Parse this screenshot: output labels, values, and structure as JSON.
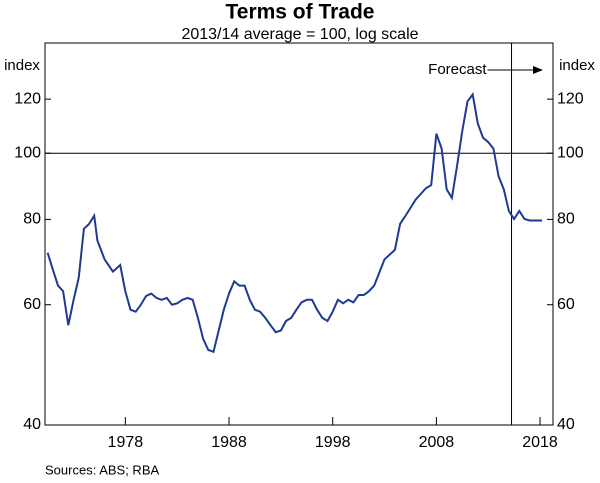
{
  "chart_data": {
    "type": "line",
    "title": "Terms of Trade",
    "subtitle": "2013/14 average = 100, log scale",
    "y_label": "index",
    "y2_label": "index",
    "source": "Sources:  ABS; RBA",
    "annotation": "Forecast",
    "forecast_start": 2015.25,
    "hline": 100,
    "log_scale": true,
    "xlim": [
      1970.25,
      2019.25
    ],
    "xticks": [
      1978,
      1988,
      1998,
      2008,
      2018
    ],
    "ylim": [
      40,
      145
    ],
    "yticks": [
      40,
      60,
      80,
      100,
      120
    ],
    "series": [
      {
        "name": "Terms of Trade",
        "color": "#1f3a93",
        "x": [
          1970.5,
          1971,
          1971.5,
          1972,
          1972.5,
          1973,
          1973.5,
          1974,
          1974.5,
          1975,
          1975.3,
          1976,
          1976.8,
          1977.5,
          1978,
          1978.5,
          1979,
          1979.5,
          1980,
          1980.5,
          1981,
          1981.5,
          1982,
          1982.5,
          1983,
          1983.5,
          1984,
          1984.5,
          1985,
          1985.5,
          1986,
          1986.5,
          1987,
          1987.5,
          1988,
          1988.5,
          1989,
          1989.5,
          1990,
          1990.5,
          1991,
          1991.5,
          1992,
          1992.5,
          1993,
          1993.5,
          1994,
          1994.5,
          1995,
          1995.5,
          1996,
          1996.5,
          1997,
          1997.5,
          1998,
          1998.5,
          1999,
          1999.5,
          2000,
          2000.5,
          2001,
          2001.5,
          2002,
          2003,
          2004,
          2004.5,
          2005,
          2006,
          2007,
          2007.5,
          2008,
          2008.5,
          2009,
          2009.5,
          2010,
          2010.5,
          2011,
          2011.5,
          2012,
          2012.5,
          2013,
          2013.5,
          2014,
          2014.5,
          2015,
          2015.5,
          2016,
          2016.5,
          2017,
          2018.2
        ],
        "values": [
          71.5,
          67.6,
          64,
          62.8,
          56,
          60.9,
          65.7,
          77.5,
          78.8,
          81,
          74.5,
          69.9,
          67.1,
          68.6,
          62.8,
          59,
          58.6,
          60,
          61.8,
          62.3,
          61.4,
          61,
          61.4,
          60,
          60.3,
          61,
          61.4,
          61,
          57.4,
          53.5,
          51.5,
          51.2,
          55,
          59,
          62.3,
          64.9,
          64,
          64,
          61,
          59,
          58.6,
          57.4,
          56,
          54.7,
          55,
          56.8,
          57.4,
          59,
          60.5,
          61,
          61,
          59,
          57.4,
          56.8,
          58.6,
          61,
          60.3,
          61,
          60.5,
          62,
          62,
          62.8,
          64,
          69.9,
          72.2,
          78.8,
          80.9,
          85.5,
          88.9,
          89.8,
          106.8,
          101.6,
          88.5,
          86,
          95.9,
          107.8,
          119.1,
          121.9,
          110.5,
          105.4,
          103.8,
          101.6,
          92.5,
          88.5,
          82.3,
          80.1,
          82.3,
          80.1,
          79.7,
          79.7
        ]
      }
    ]
  }
}
